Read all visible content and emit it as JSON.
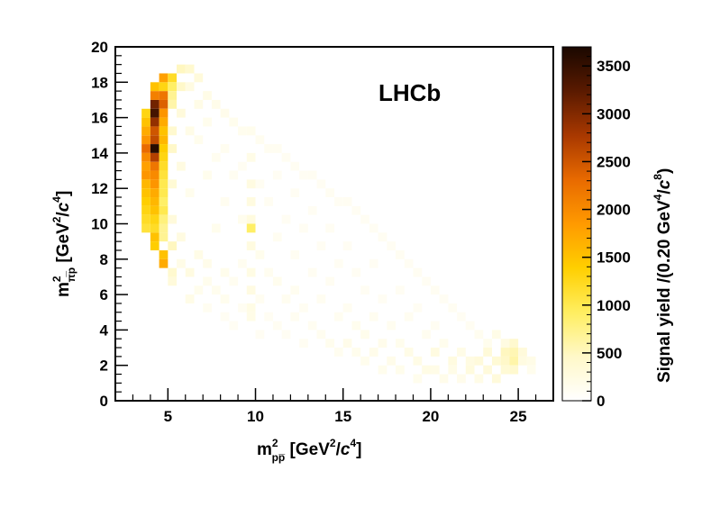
{
  "chart_data": {
    "type": "heatmap",
    "experiment_label": "LHCb",
    "xlabel": {
      "main": "m",
      "sup": "2",
      "sub": "pp̅",
      "unit_open": " [GeV",
      "unit_sup": "2",
      "unit_slash": "/",
      "unit_c": "c",
      "unit_c_sup": "4",
      "unit_close": "]"
    },
    "ylabel": {
      "main": "m",
      "sup": "2",
      "sub": "π̅p",
      "unit_open": " [GeV",
      "unit_sup": "2",
      "unit_slash": "/",
      "unit_c": "c",
      "unit_c_sup": "4",
      "unit_close": "]"
    },
    "zlabel": {
      "main": "Signal yield /(0.20 GeV",
      "sup": "4",
      "slash": "/",
      "c": "c",
      "c_sup": "8",
      "close": ")"
    },
    "xlim": [
      2,
      27
    ],
    "ylim": [
      0,
      20
    ],
    "zlim": [
      0,
      3700
    ],
    "x_ticks": [
      5,
      10,
      15,
      20,
      25
    ],
    "x_tick_labels": [
      "5",
      "10",
      "15",
      "20",
      "25"
    ],
    "y_ticks": [
      0,
      2,
      4,
      6,
      8,
      10,
      12,
      14,
      16,
      18,
      20
    ],
    "y_tick_labels": [
      "0",
      "2",
      "4",
      "6",
      "8",
      "10",
      "12",
      "14",
      "16",
      "18",
      "20"
    ],
    "z_ticks": [
      0,
      500,
      1000,
      1500,
      2000,
      2500,
      3000,
      3500
    ],
    "z_tick_labels": [
      "0",
      "500",
      "1000",
      "1500",
      "2000",
      "2500",
      "3000",
      "3500"
    ],
    "colormap": [
      "#ffffff",
      "#fff8c8",
      "#ffee60",
      "#ffcf00",
      "#ff9a00",
      "#e86a00",
      "#a83800",
      "#5a1a00",
      "#1a0800"
    ],
    "bin_width_x": 0.5,
    "bin_width_y": 0.5,
    "bins": [
      [
        3.5,
        14.5,
        1900
      ],
      [
        3.5,
        14,
        2300
      ],
      [
        3.5,
        13.5,
        2000
      ],
      [
        3.5,
        13,
        1800
      ],
      [
        3.5,
        12.5,
        1900
      ],
      [
        3.5,
        12,
        1600
      ],
      [
        3.5,
        15,
        1700
      ],
      [
        3.5,
        15.5,
        1500
      ],
      [
        3.5,
        11.5,
        1500
      ],
      [
        3.5,
        11,
        1400
      ],
      [
        3.5,
        10.5,
        1300
      ],
      [
        3.5,
        10,
        1200
      ],
      [
        3.5,
        9.5,
        1100
      ],
      [
        3.5,
        16,
        1300
      ],
      [
        4,
        16.5,
        3100
      ],
      [
        4,
        16,
        3400
      ],
      [
        4,
        15.5,
        2900
      ],
      [
        4,
        15,
        2500
      ],
      [
        4,
        14.5,
        2600
      ],
      [
        4,
        14,
        3600
      ],
      [
        4,
        13.5,
        2700
      ],
      [
        4,
        13,
        2200
      ],
      [
        4,
        12.5,
        2000
      ],
      [
        4,
        12,
        1900
      ],
      [
        4,
        11.5,
        1700
      ],
      [
        4,
        11,
        1600
      ],
      [
        4,
        10.5,
        1500
      ],
      [
        4,
        10,
        1300
      ],
      [
        4,
        9.5,
        1200
      ],
      [
        4,
        9,
        1500
      ],
      [
        4,
        8.5,
        1400
      ],
      [
        4,
        17,
        2100
      ],
      [
        4,
        17.5,
        1500
      ],
      [
        4.5,
        17,
        2200
      ],
      [
        4.5,
        16.5,
        2400
      ],
      [
        4.5,
        16,
        1900
      ],
      [
        4.5,
        15.5,
        1700
      ],
      [
        4.5,
        15,
        1500
      ],
      [
        4.5,
        14.5,
        1600
      ],
      [
        4.5,
        14,
        1400
      ],
      [
        4.5,
        13.5,
        1300
      ],
      [
        4.5,
        13,
        1200
      ],
      [
        4.5,
        12.5,
        1100
      ],
      [
        4.5,
        12,
        1000
      ],
      [
        4.5,
        11.5,
        1000
      ],
      [
        4.5,
        11,
        900
      ],
      [
        4.5,
        10.5,
        1000
      ],
      [
        4.5,
        10,
        800
      ],
      [
        4.5,
        9.5,
        700
      ],
      [
        4.5,
        9,
        700
      ],
      [
        4.5,
        8,
        1500
      ],
      [
        4.5,
        7.5,
        1700
      ],
      [
        4.5,
        17.5,
        1300
      ],
      [
        4.5,
        18,
        1800
      ],
      [
        5,
        18,
        1200
      ],
      [
        5,
        17.5,
        900
      ],
      [
        5,
        17,
        700
      ],
      [
        5,
        16.5,
        600
      ],
      [
        5,
        15,
        400
      ],
      [
        5,
        14,
        450
      ],
      [
        5,
        12,
        350
      ],
      [
        5,
        10,
        300
      ],
      [
        5,
        8.5,
        500
      ],
      [
        5,
        7,
        400
      ],
      [
        5,
        6.5,
        300
      ],
      [
        5.5,
        18.5,
        500
      ],
      [
        5.5,
        17.5,
        450
      ],
      [
        5.5,
        16,
        300
      ],
      [
        5.5,
        13,
        250
      ],
      [
        5.5,
        9,
        250
      ],
      [
        5.5,
        7.5,
        200
      ],
      [
        6,
        18.5,
        400
      ],
      [
        6,
        17.5,
        250
      ],
      [
        6,
        15,
        200
      ],
      [
        6,
        11.5,
        150
      ],
      [
        6,
        7,
        250
      ],
      [
        6,
        5.5,
        200
      ],
      [
        6.5,
        18,
        300
      ],
      [
        6.5,
        16.5,
        200
      ],
      [
        6.5,
        14.5,
        150
      ],
      [
        6.5,
        8,
        200
      ],
      [
        6.5,
        6,
        150
      ],
      [
        7,
        17,
        200
      ],
      [
        7,
        15.5,
        150
      ],
      [
        7,
        12.5,
        150
      ],
      [
        7,
        7.5,
        180
      ],
      [
        7,
        6.5,
        150
      ],
      [
        7,
        5,
        120
      ],
      [
        7.5,
        16.5,
        180
      ],
      [
        7.5,
        13.5,
        130
      ],
      [
        7.5,
        9.5,
        150
      ],
      [
        7.5,
        6,
        140
      ],
      [
        8,
        16,
        170
      ],
      [
        8,
        14,
        130
      ],
      [
        8,
        11,
        130
      ],
      [
        8,
        7,
        160
      ],
      [
        8,
        5.5,
        140
      ],
      [
        8,
        4.5,
        100
      ],
      [
        8.5,
        15.5,
        150
      ],
      [
        8.5,
        12.5,
        120
      ],
      [
        8.5,
        6.5,
        130
      ],
      [
        8.5,
        4,
        100
      ],
      [
        9,
        15,
        140
      ],
      [
        9,
        13,
        110
      ],
      [
        9,
        10,
        150
      ],
      [
        9,
        7.5,
        130
      ],
      [
        9,
        5,
        110
      ],
      [
        9.5,
        15,
        150
      ],
      [
        9.5,
        13.5,
        200
      ],
      [
        9.5,
        12,
        250
      ],
      [
        9.5,
        11,
        260
      ],
      [
        9.5,
        10,
        270
      ],
      [
        9.5,
        9.5,
        900
      ],
      [
        9.5,
        8.5,
        260
      ],
      [
        9.5,
        7,
        230
      ],
      [
        9.5,
        6,
        240
      ],
      [
        9.5,
        5,
        220
      ],
      [
        9.5,
        4.5,
        200
      ],
      [
        10,
        14.5,
        130
      ],
      [
        10,
        12,
        110
      ],
      [
        10,
        8,
        150
      ],
      [
        10,
        5.5,
        120
      ],
      [
        10,
        3.5,
        100
      ],
      [
        10.5,
        14,
        120
      ],
      [
        10.5,
        11,
        110
      ],
      [
        10.5,
        7,
        130
      ],
      [
        10.5,
        4.5,
        100
      ],
      [
        11,
        14,
        120
      ],
      [
        11,
        12.5,
        100
      ],
      [
        11,
        9,
        120
      ],
      [
        11,
        6.5,
        140
      ],
      [
        11,
        4,
        110
      ],
      [
        11.5,
        13.5,
        110
      ],
      [
        11.5,
        10,
        100
      ],
      [
        11.5,
        5.5,
        130
      ],
      [
        11.5,
        3.5,
        100
      ],
      [
        12,
        13,
        110
      ],
      [
        12,
        11.5,
        100
      ],
      [
        12,
        8,
        110
      ],
      [
        12,
        6,
        130
      ],
      [
        12,
        4.5,
        120
      ],
      [
        12.5,
        12.5,
        100
      ],
      [
        12.5,
        9.5,
        100
      ],
      [
        12.5,
        5,
        110
      ],
      [
        12.5,
        3,
        110
      ],
      [
        13,
        12.5,
        110
      ],
      [
        13,
        10.5,
        100
      ],
      [
        13,
        7,
        110
      ],
      [
        13,
        4,
        120
      ],
      [
        13.5,
        12,
        100
      ],
      [
        13.5,
        8.5,
        100
      ],
      [
        13.5,
        5.5,
        120
      ],
      [
        13.5,
        3.5,
        130
      ],
      [
        14,
        11.5,
        110
      ],
      [
        14,
        9.5,
        100
      ],
      [
        14,
        6.5,
        110
      ],
      [
        14,
        3,
        140
      ],
      [
        14.5,
        11,
        100
      ],
      [
        14.5,
        7.5,
        100
      ],
      [
        14.5,
        4.5,
        120
      ],
      [
        14.5,
        2.5,
        130
      ],
      [
        15,
        11,
        110
      ],
      [
        15,
        8.5,
        100
      ],
      [
        15,
        5,
        120
      ],
      [
        15,
        3,
        180
      ],
      [
        15.5,
        10.5,
        100
      ],
      [
        15.5,
        7,
        100
      ],
      [
        15.5,
        4,
        140
      ],
      [
        15.5,
        2.5,
        150
      ],
      [
        16,
        10,
        100
      ],
      [
        16,
        6,
        100
      ],
      [
        16,
        3.5,
        160
      ],
      [
        16,
        2,
        150
      ],
      [
        16.5,
        9.5,
        100
      ],
      [
        16.5,
        7.5,
        100
      ],
      [
        16.5,
        4.5,
        130
      ],
      [
        16.5,
        2.5,
        180
      ],
      [
        17,
        9,
        110
      ],
      [
        17,
        5.5,
        100
      ],
      [
        17,
        3,
        170
      ],
      [
        17,
        1.5,
        150
      ],
      [
        17.5,
        8.5,
        100
      ],
      [
        17.5,
        4,
        130
      ],
      [
        17.5,
        2,
        180
      ],
      [
        18,
        8,
        110
      ],
      [
        18,
        6,
        100
      ],
      [
        18,
        3,
        150
      ],
      [
        18,
        1.5,
        160
      ],
      [
        18.5,
        7.5,
        100
      ],
      [
        18.5,
        4.5,
        120
      ],
      [
        18.5,
        2.5,
        200
      ],
      [
        19,
        7,
        110
      ],
      [
        19,
        5,
        100
      ],
      [
        19,
        2,
        210
      ],
      [
        19,
        1,
        150
      ],
      [
        19.5,
        6.5,
        100
      ],
      [
        19.5,
        3.5,
        130
      ],
      [
        19.5,
        1.5,
        220
      ],
      [
        20,
        6,
        110
      ],
      [
        20,
        4,
        110
      ],
      [
        20,
        2.5,
        250
      ],
      [
        20,
        1.5,
        200
      ],
      [
        20.5,
        5.5,
        100
      ],
      [
        20.5,
        3,
        150
      ],
      [
        20.5,
        1,
        180
      ],
      [
        21,
        5,
        110
      ],
      [
        21,
        2,
        260
      ],
      [
        21,
        1.5,
        200
      ],
      [
        21.5,
        4.5,
        100
      ],
      [
        21.5,
        2.5,
        200
      ],
      [
        21.5,
        1,
        170
      ],
      [
        22,
        4,
        110
      ],
      [
        22,
        2,
        240
      ],
      [
        22,
        1.5,
        280
      ],
      [
        22.5,
        3.5,
        130
      ],
      [
        22.5,
        2,
        300
      ],
      [
        22.5,
        1,
        200
      ],
      [
        23,
        3,
        150
      ],
      [
        23,
        2.5,
        320
      ],
      [
        23,
        1.5,
        300
      ],
      [
        23.5,
        3.5,
        200
      ],
      [
        23.5,
        2,
        350
      ],
      [
        23.5,
        1,
        300
      ],
      [
        24,
        3,
        250
      ],
      [
        24,
        2.5,
        500
      ],
      [
        24,
        2,
        450
      ],
      [
        24,
        1.5,
        350
      ],
      [
        24.5,
        3,
        400
      ],
      [
        24.5,
        2.5,
        550
      ],
      [
        24.5,
        2,
        600
      ],
      [
        24.5,
        1.5,
        400
      ],
      [
        25,
        2.5,
        300
      ],
      [
        25,
        2,
        250
      ],
      [
        25.5,
        2,
        200
      ],
      [
        25.5,
        1.5,
        150
      ]
    ]
  }
}
